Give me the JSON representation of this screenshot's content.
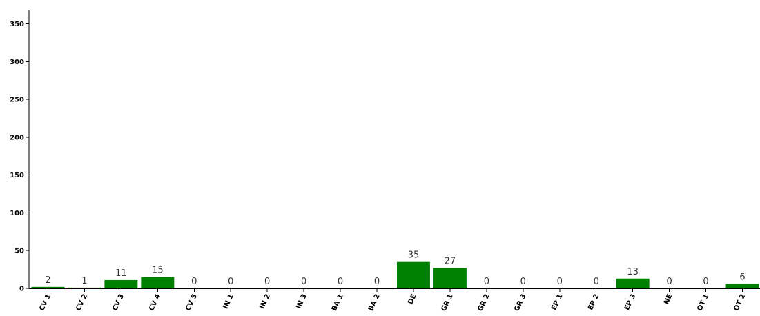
{
  "chart_data": {
    "type": "bar",
    "title": "",
    "xlabel": "",
    "ylabel": "",
    "ylim": [
      0,
      368
    ],
    "yticks": [
      0,
      50,
      100,
      150,
      200,
      250,
      300,
      350
    ],
    "categories": [
      "CV 1",
      "CV 2",
      "CV 3",
      "CV 4",
      "CV 5",
      "IN 1",
      "IN 2",
      "IN 3",
      "BA 1",
      "BA 2",
      "DE",
      "GR 1",
      "GR 2",
      "GR 3",
      "EP 1",
      "EP 2",
      "EP 3",
      "NE",
      "OT 1",
      "OT 2"
    ],
    "values": [
      2,
      1,
      11,
      15,
      0,
      0,
      0,
      0,
      0,
      0,
      35,
      27,
      0,
      0,
      0,
      0,
      13,
      0,
      0,
      6
    ],
    "data_labels": [
      "2",
      "1",
      "11",
      "15",
      "0",
      "0",
      "0",
      "0",
      "0",
      "0",
      "35",
      "27",
      "0",
      "0",
      "0",
      "0",
      "13",
      "0",
      "0",
      "6"
    ],
    "bar_color": "#008000",
    "grid": false,
    "legend": "none"
  }
}
